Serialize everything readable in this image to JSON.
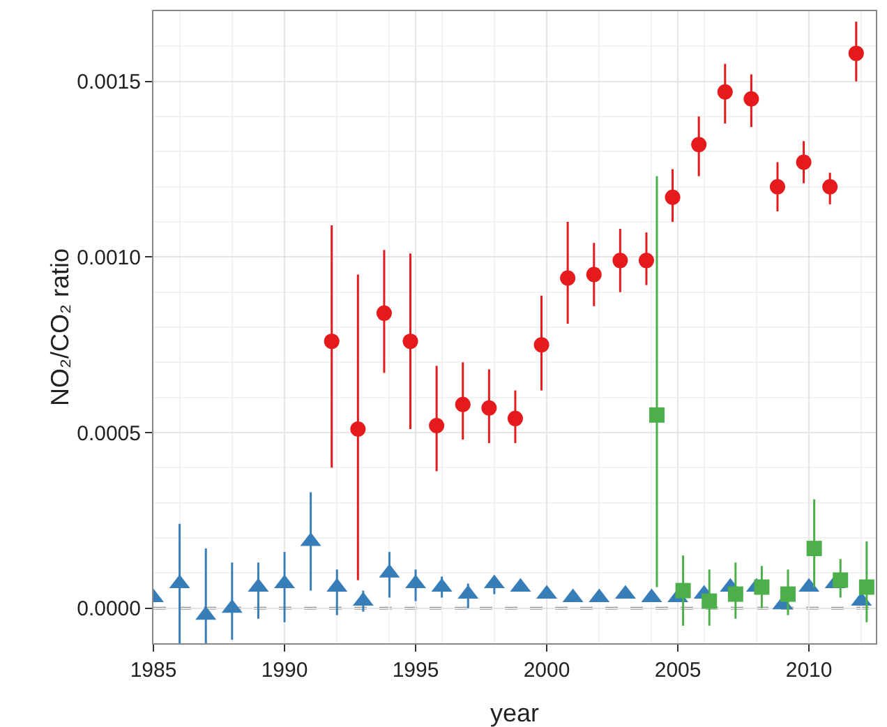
{
  "chart_data": {
    "type": "scatter",
    "xlabel": "year",
    "ylabel": "NO₂/CO₂ ratio",
    "xlim": [
      1985,
      2012.55
    ],
    "ylim": [
      -0.0001,
      0.0017
    ],
    "xticks": [
      1985,
      1990,
      1995,
      2000,
      2005,
      2010
    ],
    "yticks": [
      {
        "value": 0,
        "label": "0.0000"
      },
      {
        "value": 0.0005,
        "label": "0.0005"
      },
      {
        "value": 0.001,
        "label": "0.0010"
      },
      {
        "value": 0.0015,
        "label": "0.0015"
      }
    ],
    "grid": true,
    "ref_lines": [
      {
        "axis": "y",
        "value": 0,
        "color": "#999999",
        "line_style": "dashed"
      }
    ],
    "series": [
      {
        "color": "#e41a1c",
        "marker": "circle",
        "x": [
          1991.8,
          1992.8,
          1993.8,
          1994.8,
          1995.8,
          1996.8,
          1997.8,
          1998.8,
          1999.8,
          2000.8,
          2001.8,
          2002.8,
          2003.8,
          2004.8,
          2005.8,
          2006.8,
          2007.8,
          2008.8,
          2009.8,
          2010.8,
          2011.8
        ],
        "values": [
          0.00076,
          0.00051,
          0.00084,
          0.00076,
          0.00052,
          0.00058,
          0.00057,
          0.00054,
          0.00075,
          0.00094,
          0.00095,
          0.00099,
          0.00099,
          0.00117,
          0.00132,
          0.00147,
          0.00145,
          0.0012,
          0.00127,
          0.0012,
          0.00158
        ],
        "errors": [
          [
            0.0004,
            0.00109
          ],
          [
            8e-05,
            0.00095
          ],
          [
            0.00067,
            0.00102
          ],
          [
            0.00051,
            0.00101
          ],
          [
            0.00039,
            0.00069
          ],
          [
            0.00048,
            0.0007
          ],
          [
            0.00047,
            0.00068
          ],
          [
            0.00047,
            0.00062
          ],
          [
            0.00062,
            0.00089
          ],
          [
            0.00081,
            0.0011
          ],
          [
            0.00086,
            0.00104
          ],
          [
            0.0009,
            0.00108
          ],
          [
            0.00092,
            0.00107
          ],
          [
            0.0011,
            0.00125
          ],
          [
            0.00123,
            0.0014
          ],
          [
            0.00138,
            0.00155
          ],
          [
            0.00137,
            0.00152
          ],
          [
            0.00113,
            0.00127
          ],
          [
            0.00121,
            0.00133
          ],
          [
            0.00115,
            0.00124
          ],
          [
            0.0015,
            0.00167
          ]
        ]
      },
      {
        "color": "#377eb8",
        "marker": "triangle",
        "x": [
          1985,
          1986,
          1987,
          1988,
          1989,
          1990,
          1991,
          1992,
          1993,
          1994,
          1995,
          1996,
          1997,
          1998,
          1999,
          2000,
          2001,
          2002,
          2003,
          2004,
          2005,
          2006,
          2007,
          2008,
          2009,
          2010,
          2011,
          2012
        ],
        "values": [
          3e-05,
          7e-05,
          -2e-05,
          0.0,
          6e-05,
          7e-05,
          0.00019,
          6e-05,
          2e-05,
          0.0001,
          7e-05,
          6e-05,
          4e-05,
          7e-05,
          6e-05,
          4e-05,
          3e-05,
          3e-05,
          4e-05,
          3e-05,
          3e-05,
          4e-05,
          6e-05,
          6e-05,
          1e-05,
          6e-05,
          7e-05,
          2e-05
        ],
        "errors": [
          null,
          [
            -0.0001,
            0.00024
          ],
          [
            -0.0001,
            0.00017
          ],
          [
            -9e-05,
            0.00013
          ],
          [
            -3e-05,
            0.00013
          ],
          [
            -4e-05,
            0.00016
          ],
          [
            5e-05,
            0.00033
          ],
          [
            -2e-05,
            0.00011
          ],
          [
            -1e-05,
            5e-05
          ],
          [
            3e-05,
            0.00016
          ],
          [
            2e-05,
            0.00011
          ],
          [
            3e-05,
            9e-05
          ],
          [
            0.0,
            7e-05
          ],
          [
            4e-05,
            9e-05
          ],
          null,
          null,
          null,
          null,
          null,
          null,
          null,
          null,
          null,
          null,
          null,
          null,
          null,
          null
        ]
      },
      {
        "color": "#4daf4a",
        "marker": "square",
        "x": [
          2004.2,
          2005.2,
          2006.2,
          2007.2,
          2008.2,
          2009.2,
          2010.2,
          2011.2,
          2012.2
        ],
        "values": [
          0.00055,
          5e-05,
          2e-05,
          4e-05,
          6e-05,
          4e-05,
          0.00017,
          8e-05,
          6e-05
        ],
        "errors": [
          [
            6e-05,
            0.00123
          ],
          [
            -5e-05,
            0.00015
          ],
          [
            -5e-05,
            0.00011
          ],
          [
            -3e-05,
            0.00013
          ],
          [
            0.0,
            0.00012
          ],
          [
            -2e-05,
            0.00011
          ],
          [
            6e-05,
            0.00031
          ],
          [
            3e-05,
            0.00014
          ],
          [
            -4e-05,
            0.00019
          ]
        ]
      }
    ]
  }
}
